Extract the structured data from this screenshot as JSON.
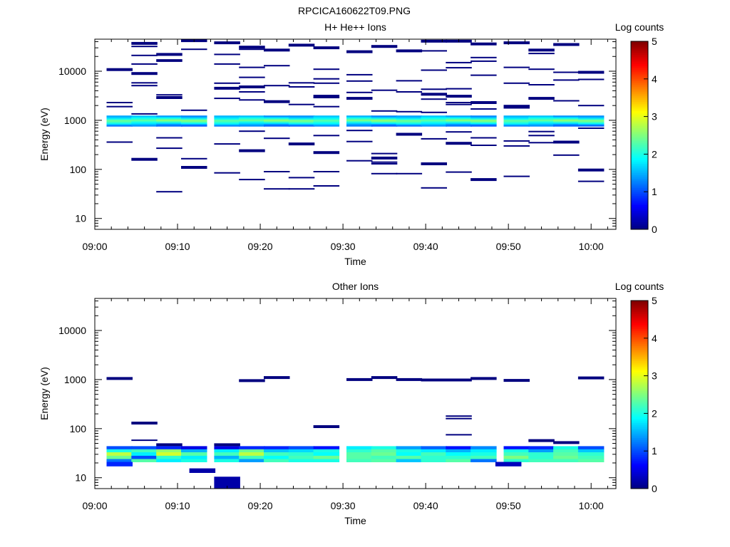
{
  "figure": {
    "title": "RPCICA160622T09.PNG"
  },
  "colormap": [
    "#00007f",
    "#0000ff",
    "#007fff",
    "#00ffff",
    "#7fff7f",
    "#ffff00",
    "#ff7f00",
    "#ff0000",
    "#7f0000"
  ],
  "chart_data": [
    {
      "type": "heatmap",
      "title": "H+ He++ Ions",
      "xlabel": "Time",
      "ylabel": "Energy (eV)",
      "x_range": [
        "09:00",
        "10:03"
      ],
      "xticks": [
        "09:00",
        "09:10",
        "09:20",
        "09:30",
        "09:40",
        "09:50",
        "10:00"
      ],
      "yscale": "log",
      "y_range": [
        6,
        45000
      ],
      "yticks": [
        "10",
        "100",
        "1000",
        "10000"
      ],
      "colorbar": {
        "label": "Log counts",
        "range": [
          0,
          5
        ],
        "ticks": [
          "0",
          "1",
          "2",
          "3",
          "4",
          "5"
        ]
      },
      "time_bins": [
        "09:03",
        "09:06",
        "09:09",
        "09:12",
        "09:16",
        "09:19",
        "09:22",
        "09:25",
        "09:28",
        "09:32",
        "09:35",
        "09:38",
        "09:41",
        "09:44",
        "09:47",
        "09:51",
        "09:54",
        "09:57",
        "10:00"
      ],
      "core_band": {
        "energy_range_eV": [
          760,
          1250
        ],
        "peak_energy_eV": 1000,
        "peak_log_counts": 2.5,
        "edge_log_counts": 1.0
      },
      "scatter_energies_eV": [
        [
          10800,
          2300,
          1900,
          360
        ],
        [
          37000,
          32000,
          21000,
          14000,
          9000,
          5800,
          5100,
          1350,
          160
        ],
        [
          22000,
          17000,
          16000,
          3300,
          2900,
          440,
          270,
          35
        ],
        [
          42000,
          28000,
          1600,
          165,
          110
        ],
        [
          38000,
          22000,
          14000,
          5700,
          4500,
          2800,
          330,
          85
        ],
        [
          31000,
          28000,
          12000,
          7500,
          4800,
          3800,
          2600,
          600,
          240,
          62
        ],
        [
          27000,
          27000,
          13000,
          5100,
          2400,
          430,
          90,
          40
        ],
        [
          34000,
          5800,
          4800,
          2100,
          330,
          68,
          40
        ],
        [
          30000,
          11000,
          7000,
          5700,
          3100,
          2900,
          1900,
          490,
          220,
          90,
          46
        ],
        [
          25000,
          8500,
          6300,
          3700,
          2800,
          620,
          370,
          150
        ],
        [
          32000,
          4100,
          1550,
          210,
          170,
          140,
          130,
          82
        ],
        [
          26000,
          6400,
          3800,
          1500,
          520,
          82
        ],
        [
          41000,
          26000,
          10500,
          4300,
          3400,
          2700,
          1450,
          420,
          130,
          42
        ],
        [
          41000,
          15000,
          11800,
          4400,
          3100,
          2300,
          2100,
          580,
          340,
          88
        ],
        [
          36000,
          19000,
          16000,
          8300,
          2300,
          1700,
          440,
          310,
          62
        ],
        [
          38000,
          12000,
          5700,
          2000,
          1850,
          380,
          300,
          72
        ],
        [
          27000,
          23000,
          11000,
          5300,
          2800,
          590,
          490,
          350
        ],
        [
          35000,
          9500,
          6600,
          2500,
          360,
          195
        ],
        [
          9500,
          6800,
          2000,
          690,
          97,
          57
        ]
      ]
    },
    {
      "type": "heatmap",
      "title": "Other Ions",
      "xlabel": "Time",
      "ylabel": "Energy (eV)",
      "x_range": [
        "09:00",
        "10:03"
      ],
      "xticks": [
        "09:00",
        "09:10",
        "09:20",
        "09:30",
        "09:40",
        "09:50",
        "10:00"
      ],
      "yscale": "log",
      "y_range": [
        6,
        45000
      ],
      "yticks": [
        "10",
        "100",
        "1000",
        "10000"
      ],
      "colorbar": {
        "label": "Log counts",
        "range": [
          0,
          5
        ],
        "ticks": [
          "0",
          "1",
          "2",
          "3",
          "4",
          "5"
        ]
      },
      "time_bins": [
        "09:03",
        "09:06",
        "09:09",
        "09:12",
        "09:16",
        "09:19",
        "09:22",
        "09:25",
        "09:28",
        "09:32",
        "09:35",
        "09:38",
        "09:41",
        "09:44",
        "09:47",
        "09:51",
        "09:54",
        "09:57",
        "10:00"
      ],
      "band_energy_edges_eV": [
        44,
        38,
        33,
        28,
        24,
        21
      ],
      "band_log_counts": [
        [
          1.0,
          2.0,
          2.8,
          2.4,
          1.2
        ],
        [
          1.0,
          2.2,
          1.8,
          1.0,
          2.3
        ],
        [
          0.8,
          2.6,
          2.9,
          2.1,
          1.8
        ],
        [
          0.5,
          1.5,
          2.3,
          1.8,
          2.0
        ],
        [
          0.5,
          1.8,
          2.2,
          1.5,
          2.0
        ],
        [
          0.8,
          2.4,
          2.8,
          2.2,
          1.4
        ],
        [
          0.8,
          1.6,
          2.2,
          1.9,
          2.2
        ],
        [
          1.0,
          1.7,
          2.1,
          2.2,
          2.0
        ],
        [
          0.7,
          2.0,
          1.9,
          2.4,
          2.0
        ],
        [
          1.8,
          2.1,
          2.3,
          2.3,
          2.2
        ],
        [
          2.0,
          2.3,
          2.4,
          2.2,
          2.3
        ],
        [
          1.4,
          2.0,
          1.9,
          2.3,
          1.6
        ],
        [
          1.1,
          1.8,
          2.2,
          2.1,
          2.1
        ],
        [
          0.7,
          1.5,
          1.9,
          2.1,
          2.3
        ],
        [
          1.3,
          1.8,
          2.0,
          2.2,
          1.2
        ],
        [
          0.7,
          2.0,
          2.2,
          2.5,
          2.1
        ],
        [
          0.8,
          1.4,
          2.1,
          2.1,
          2.2
        ],
        [
          2.0,
          2.2,
          2.3,
          2.4,
          2.2
        ],
        [
          1.0,
          1.6,
          2.1,
          2.2,
          2.3
        ]
      ],
      "extra_cells": [
        {
          "time": "09:03",
          "energy_range_eV": [
            17,
            21
          ],
          "log_counts": 0.8
        },
        {
          "time": "09:50",
          "energy_range_eV": [
            17,
            21
          ],
          "log_counts": 0.3
        },
        {
          "time": "09:13",
          "energy_range_eV": [
            12.5,
            15.5
          ],
          "log_counts": 0.2
        },
        {
          "time": "09:16",
          "energy_range_eV": [
            6,
            10.5
          ],
          "log_counts": 0.2
        }
      ],
      "scatter_energies_eV": [
        [
          1050
        ],
        [
          130,
          58
        ],
        [
          47
        ],
        [],
        [
          47
        ],
        [
          950
        ],
        [
          1100
        ],
        [],
        [
          110
        ],
        [
          1000
        ],
        [
          1100
        ],
        [
          1000
        ],
        [
          980
        ],
        [
          980,
          180,
          160,
          75
        ],
        [
          1050
        ],
        [
          960
        ],
        [
          57
        ],
        [
          52
        ],
        [
          1080
        ]
      ]
    }
  ]
}
